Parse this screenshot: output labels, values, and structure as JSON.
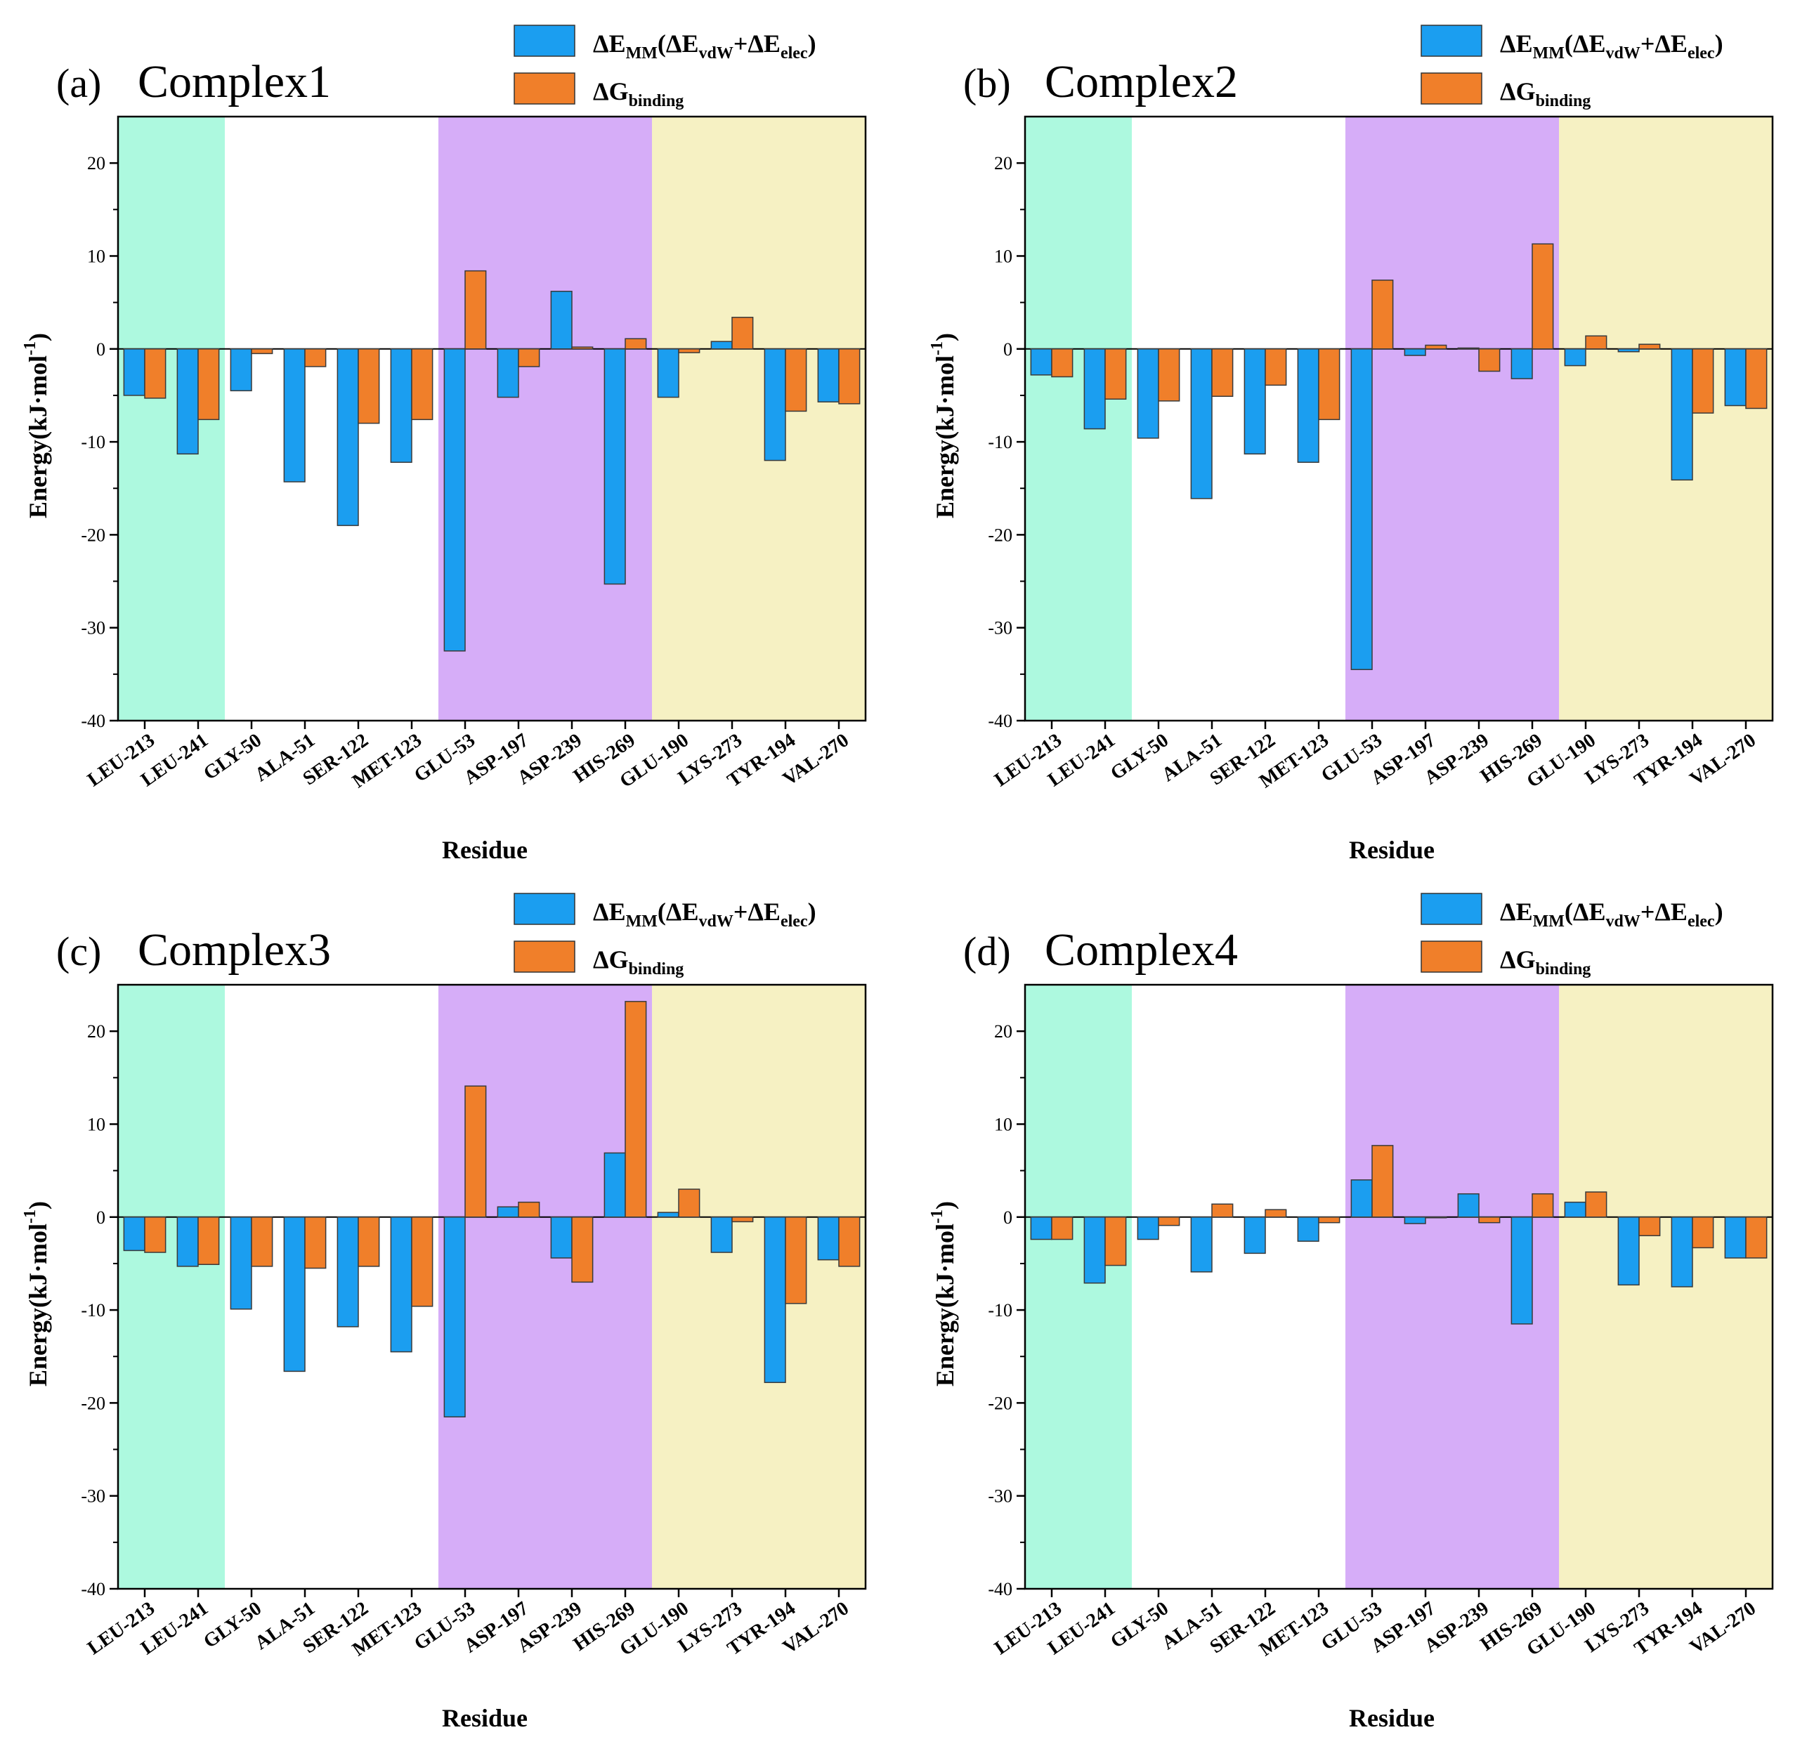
{
  "colors": {
    "bar_mm": "#1b9ef0",
    "bar_g": "#f07f2a",
    "region_teal": "#adf9df",
    "region_white": "#ffffff",
    "region_purple": "#d6adf8",
    "region_yellow": "#f6f1c3"
  },
  "legend": {
    "mm": {
      "pre": "ΔE",
      "sub1": "MM",
      "mid1": "(ΔE",
      "sub2": "vdW",
      "mid2": "+ΔE",
      "sub3": "elec",
      "post": ")"
    },
    "g": {
      "pre": "ΔG",
      "sub": "binding"
    }
  },
  "chart_data": [
    {
      "type": "bar",
      "panel_label": "(a)",
      "title": "Complex1",
      "xlabel": "Residue",
      "ylabel": "Energy(kJ·mol",
      "ylabel_sup": "-1",
      "ylabel_close": ")",
      "ylim": [
        -40,
        25
      ],
      "yticks": [
        -40,
        -30,
        -20,
        -10,
        0,
        10,
        20
      ],
      "categories": [
        "LEU-213",
        "LEU-241",
        "GLY-50",
        "ALA-51",
        "SER-122",
        "MET-123",
        "GLU-53",
        "ASP-197",
        "ASP-239",
        "HIS-269",
        "GLU-190",
        "LYS-273",
        "TYR-194",
        "VAL-270"
      ],
      "regions": [
        [
          "teal",
          0,
          2
        ],
        [
          "white",
          2,
          6
        ],
        [
          "purple",
          6,
          10
        ],
        [
          "yellow",
          10,
          14
        ]
      ],
      "series": [
        {
          "name": "ΔE_MM(ΔE_vdW+ΔE_elec)",
          "values": [
            -5.0,
            -11.3,
            -4.5,
            -14.3,
            -19.0,
            -12.2,
            -32.5,
            -5.2,
            6.2,
            -25.3,
            -5.2,
            0.8,
            -12.0,
            -5.7
          ]
        },
        {
          "name": "ΔG_binding",
          "values": [
            -5.3,
            -7.6,
            -0.5,
            -1.9,
            -8.0,
            -7.6,
            8.4,
            -1.9,
            0.2,
            1.1,
            -0.4,
            3.4,
            -6.7,
            -5.9
          ]
        }
      ]
    },
    {
      "type": "bar",
      "panel_label": "(b)",
      "title": "Complex2",
      "xlabel": "Residue",
      "ylabel": "Energy(kJ·mol",
      "ylabel_sup": "-1",
      "ylabel_close": ")",
      "ylim": [
        -40,
        25
      ],
      "yticks": [
        -40,
        -30,
        -20,
        -10,
        0,
        10,
        20
      ],
      "categories": [
        "LEU-213",
        "LEU-241",
        "GLY-50",
        "ALA-51",
        "SER-122",
        "MET-123",
        "GLU-53",
        "ASP-197",
        "ASP-239",
        "HIS-269",
        "GLU-190",
        "LYS-273",
        "TYR-194",
        "VAL-270"
      ],
      "regions": [
        [
          "teal",
          0,
          2
        ],
        [
          "white",
          2,
          6
        ],
        [
          "purple",
          6,
          10
        ],
        [
          "yellow",
          10,
          14
        ]
      ],
      "series": [
        {
          "name": "ΔE_MM(ΔE_vdW+ΔE_elec)",
          "values": [
            -2.8,
            -8.6,
            -9.6,
            -16.1,
            -11.3,
            -12.2,
            -34.5,
            -0.7,
            0.1,
            -3.2,
            -1.8,
            -0.3,
            -14.1,
            -6.1
          ]
        },
        {
          "name": "ΔG_binding",
          "values": [
            -3.0,
            -5.4,
            -5.6,
            -5.1,
            -3.9,
            -7.6,
            7.4,
            0.4,
            -2.4,
            11.3,
            1.4,
            0.5,
            -6.9,
            -6.4
          ]
        }
      ]
    },
    {
      "type": "bar",
      "panel_label": "(c)",
      "title": "Complex3",
      "xlabel": "Residue",
      "ylabel": "Energy(kJ·mol",
      "ylabel_sup": "-1",
      "ylabel_close": ")",
      "ylim": [
        -40,
        25
      ],
      "yticks": [
        -40,
        -30,
        -20,
        -10,
        0,
        10,
        20
      ],
      "categories": [
        "LEU-213",
        "LEU-241",
        "GLY-50",
        "ALA-51",
        "SER-122",
        "MET-123",
        "GLU-53",
        "ASP-197",
        "ASP-239",
        "HIS-269",
        "GLU-190",
        "LYS-273",
        "TYR-194",
        "VAL-270"
      ],
      "regions": [
        [
          "teal",
          0,
          2
        ],
        [
          "white",
          2,
          6
        ],
        [
          "purple",
          6,
          10
        ],
        [
          "yellow",
          10,
          14
        ]
      ],
      "series": [
        {
          "name": "ΔE_MM(ΔE_vdW+ΔE_elec)",
          "values": [
            -3.6,
            -5.3,
            -9.9,
            -16.6,
            -11.8,
            -14.5,
            -21.5,
            1.1,
            -4.4,
            6.9,
            0.5,
            -3.8,
            -17.8,
            -4.6
          ]
        },
        {
          "name": "ΔG_binding",
          "values": [
            -3.8,
            -5.1,
            -5.3,
            -5.5,
            -5.3,
            -9.6,
            14.1,
            1.6,
            -7.0,
            23.2,
            3.0,
            -0.5,
            -9.3,
            -5.3
          ]
        }
      ]
    },
    {
      "type": "bar",
      "panel_label": "(d)",
      "title": "Complex4",
      "xlabel": "Residue",
      "ylabel": "Energy(kJ·mol",
      "ylabel_sup": "-1",
      "ylabel_close": ")",
      "ylim": [
        -40,
        25
      ],
      "yticks": [
        -40,
        -30,
        -20,
        -10,
        0,
        10,
        20
      ],
      "categories": [
        "LEU-213",
        "LEU-241",
        "GLY-50",
        "ALA-51",
        "SER-122",
        "MET-123",
        "GLU-53",
        "ASP-197",
        "ASP-239",
        "HIS-269",
        "GLU-190",
        "LYS-273",
        "TYR-194",
        "VAL-270"
      ],
      "regions": [
        [
          "teal",
          0,
          2
        ],
        [
          "white",
          2,
          6
        ],
        [
          "purple",
          6,
          10
        ],
        [
          "yellow",
          10,
          14
        ]
      ],
      "series": [
        {
          "name": "ΔE_MM(ΔE_vdW+ΔE_elec)",
          "values": [
            -2.4,
            -7.1,
            -2.4,
            -5.9,
            -3.9,
            -2.6,
            4.0,
            -0.7,
            2.5,
            -11.5,
            1.6,
            -7.3,
            -7.5,
            -4.4
          ]
        },
        {
          "name": "ΔG_binding",
          "values": [
            -2.4,
            -5.2,
            -0.9,
            1.4,
            0.8,
            -0.6,
            7.7,
            0.0,
            -0.6,
            2.5,
            2.7,
            -2.0,
            -3.3,
            -4.4
          ]
        }
      ]
    }
  ]
}
